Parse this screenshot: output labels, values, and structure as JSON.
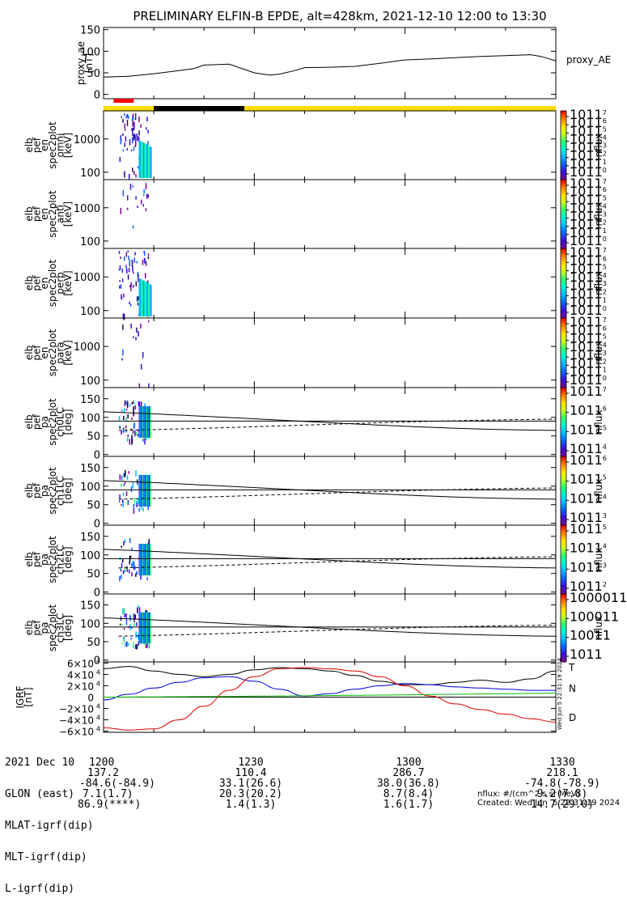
{
  "title": "PRELIMINARY ELFIN-B EPDE, alt=428km, 2021-12-10 12:00 to 13:30",
  "chart_data": [
    {
      "type": "line",
      "panel": "proxy_ae",
      "ylabel_lines": [
        "proxy_ae",
        "[nT]"
      ],
      "legend": "proxy_AE",
      "ylim": [
        -10,
        155
      ],
      "yticks": [
        0,
        50,
        100,
        150
      ],
      "x_minutes": [
        0,
        5,
        10,
        15,
        18,
        20,
        25,
        30,
        33,
        35,
        38,
        40,
        45,
        50,
        55,
        60,
        65,
        70,
        75,
        80,
        85,
        87,
        90
      ],
      "values": [
        40,
        42,
        48,
        55,
        60,
        68,
        70,
        50,
        45,
        47,
        55,
        62,
        63,
        65,
        72,
        80,
        82,
        85,
        88,
        90,
        92,
        88,
        78
      ]
    },
    {
      "type": "heatmap",
      "panel": "elb_pef_en_spec2plot_omni",
      "ylabel_lines": [
        "elb",
        "pef",
        "en",
        "spec2plot",
        "omni",
        "[keV]"
      ],
      "yticks": [
        "100",
        "1000"
      ],
      "colorbar_label": "nflux",
      "colorbar_ticks": [
        "10",
        "10",
        "10",
        "10",
        "10",
        "10",
        "10",
        "10"
      ],
      "colorbar_exp": [
        "0",
        "1",
        "2",
        "3",
        "4",
        "5",
        "6",
        "7"
      ]
    },
    {
      "type": "heatmap",
      "panel": "elb_pef_en_spec2plot_anti",
      "ylabel_lines": [
        "elb",
        "pef",
        "en",
        "spec2plot",
        "anti",
        "[keV]"
      ],
      "yticks": [
        "100",
        "1000"
      ],
      "colorbar_label": "nflux"
    },
    {
      "type": "heatmap",
      "panel": "elb_pef_en_spec2plot_perp",
      "ylabel_lines": [
        "elb",
        "pef",
        "en",
        "spec2plot",
        "perp",
        "[keV]"
      ],
      "yticks": [
        "100",
        "1000"
      ],
      "colorbar_label": "nflux"
    },
    {
      "type": "heatmap",
      "panel": "elb_pef_en_spec2plot_para",
      "ylabel_lines": [
        "elb",
        "pef",
        "en",
        "spec2plot",
        "para",
        "[keV]"
      ],
      "yticks": [
        "100",
        "1000"
      ],
      "colorbar_label": "nflux"
    },
    {
      "type": "heatmap",
      "panel": "elb_pef_pa_spec2plot_ch0LC",
      "ylabel_lines": [
        "elb",
        "pef",
        "pa",
        "spec2plot",
        "ch0LC",
        "[deg]"
      ],
      "yticks": [
        "0",
        "50",
        "100",
        "150"
      ],
      "colorbar_label": "nflux",
      "colorbar_ticks": [
        "10",
        "10",
        "10",
        "10"
      ],
      "colorbar_exp": [
        "4",
        "5",
        "6",
        "7"
      ]
    },
    {
      "type": "heatmap",
      "panel": "elb_pef_pa_spec2plot_ch1LC",
      "ylabel_lines": [
        "elb",
        "pef",
        "pa",
        "spec2plot",
        "ch1LC",
        "[deg]"
      ],
      "yticks": [
        "0",
        "50",
        "100",
        "150"
      ],
      "colorbar_label": "nflux",
      "colorbar_ticks": [
        "10",
        "10",
        "10",
        "10"
      ],
      "colorbar_exp": [
        "3",
        "4",
        "5",
        "6"
      ]
    },
    {
      "type": "heatmap",
      "panel": "elb_pef_pa_spec2plot_ch2LC",
      "ylabel_lines": [
        "elb",
        "pef",
        "pa",
        "spec2plot",
        "ch2LC",
        "[deg]"
      ],
      "yticks": [
        "0",
        "50",
        "100",
        "150"
      ],
      "colorbar_label": "nflux",
      "colorbar_ticks": [
        "10",
        "10",
        "10",
        "10"
      ],
      "colorbar_exp": [
        "2",
        "3",
        "4",
        "5"
      ]
    },
    {
      "type": "heatmap",
      "panel": "elb_pef_pa_spec2plot_ch3LC",
      "ylabel_lines": [
        "elb",
        "pef",
        "pa",
        "spec2plot",
        "ch3LC",
        "[deg]"
      ],
      "yticks": [
        "0",
        "50",
        "100",
        "150"
      ],
      "colorbar_label": "nflux",
      "colorbar_ticks": [
        "10000",
        "1000",
        "100",
        "10"
      ]
    },
    {
      "type": "line",
      "panel": "igrf",
      "ylabel_lines": [
        "IGRF",
        "[nT]"
      ],
      "yticks": [
        "6×10",
        "4×10",
        "2×10",
        "0",
        "−2×10",
        "−4×10",
        "−6×10"
      ],
      "ytick_exp": "4",
      "ylim": [
        -62000,
        62000
      ],
      "x_minutes": [
        0,
        5,
        10,
        15,
        20,
        25,
        30,
        35,
        40,
        45,
        50,
        55,
        60,
        65,
        70,
        75,
        80,
        85,
        90
      ],
      "series": [
        {
          "name": "T",
          "values": [
            50000,
            54000,
            46000,
            40000,
            36000,
            40000,
            48000,
            52000,
            50000,
            46000,
            38000,
            28000,
            22000,
            22000,
            26000,
            30000,
            26000,
            32000,
            46000
          ]
        },
        {
          "name": "N",
          "values": [
            -5000,
            5000,
            16000,
            26000,
            34000,
            36000,
            28000,
            14000,
            2000,
            6000,
            14000,
            20000,
            24000,
            22000,
            18000,
            16000,
            14000,
            12000,
            12000
          ]
        },
        {
          "name": "D",
          "values": [
            -54000,
            -58000,
            -56000,
            -40000,
            -16000,
            12000,
            36000,
            50000,
            52000,
            50000,
            46000,
            36000,
            20000,
            2000,
            -12000,
            -22000,
            -30000,
            -38000,
            -44000
          ]
        },
        {
          "name": "",
          "values": [
            0,
            200,
            400,
            700,
            1000,
            1300,
            1700,
            2000,
            2400,
            2800,
            3200,
            3600,
            4000,
            4500,
            5000,
            5500,
            6000,
            6500,
            7000
          ]
        }
      ]
    }
  ],
  "status_bar": {
    "red_segment_minutes": [
      2,
      6
    ],
    "black_segment_minutes": [
      10,
      28
    ]
  },
  "footer": {
    "row_labels": [
      "2021 Dec 10",
      "GLON (east)",
      "MLAT-igrf(dip)",
      "MLT-igrf(dip)",
      "L-igrf(dip)"
    ],
    "col0": [
      "1200",
      "137.2",
      "-84.6(-84.9)",
      "7.1(1.7)",
      "86.9(****)"
    ],
    "col1": [
      "1230",
      "110.4",
      "33.1(26.6)",
      "20.3(20.2)",
      "1.4(1.3)"
    ],
    "col2": [
      "1300",
      "286.7",
      "38.0(36.8)",
      "8.7(8.4)",
      "1.6(1.7)"
    ],
    "col3": [
      "1330",
      "218.1",
      "-74.8(-78.9)",
      "9.2(7.8)",
      "14.7(29.0)"
    ],
    "units_note": "nflux: #/(cm^2 s sr MeV)",
    "created": "Created: Wed Jun  5 22:31:19 2024",
    "side_stamp": "Wed Jun  5 22:31:19 2024"
  }
}
